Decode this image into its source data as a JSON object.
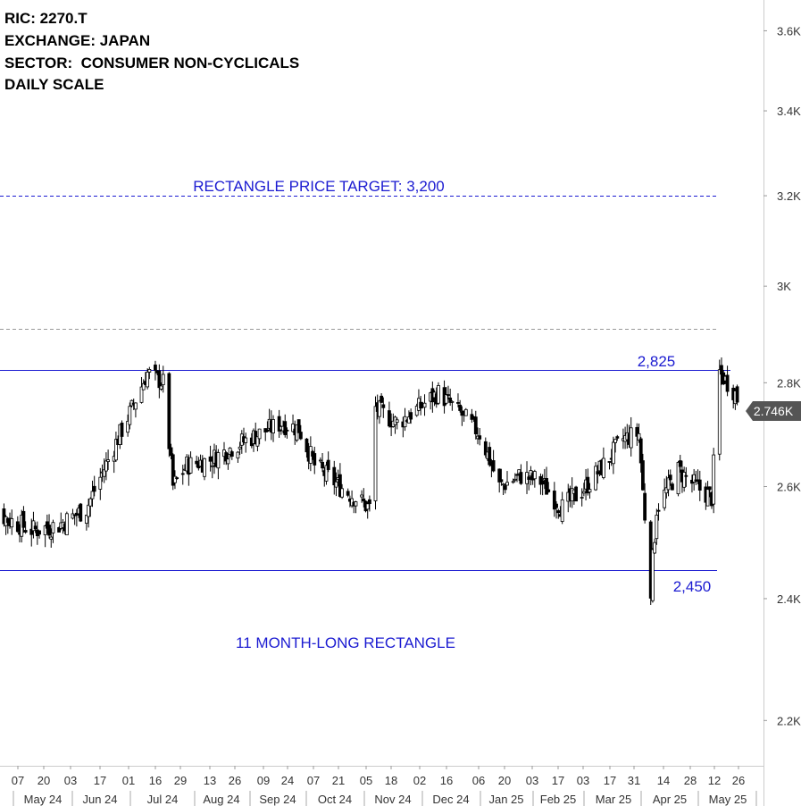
{
  "header": {
    "ric": "RIC: 2270.T",
    "exchange": "EXCHANGE: JAPAN",
    "sector": "SECTOR:  CONSUMER NON-CYCLICALS",
    "scale": "DAILY SCALE"
  },
  "annotations": {
    "target_label": "RECTANGLE PRICE TARGET: 3,200",
    "upper_label": "2,825",
    "lower_label": "2,450",
    "pattern_label": "11 MONTH-LONG RECTANGLE"
  },
  "last_price": "2.746K",
  "colors": {
    "annotation_blue": "#1b1bd1",
    "candle": "#000000",
    "price_tag": "#555555",
    "grid_dotted": "#999999"
  },
  "chart_data": {
    "type": "candlestick",
    "title": "",
    "y_axis": {
      "scale": "log",
      "ticks": [
        "2.2K",
        "2.4K",
        "2.6K",
        "2.8K",
        "3K",
        "3.2K",
        "3.4K",
        "3.6K"
      ],
      "tick_values": [
        2200,
        2400,
        2600,
        2800,
        3000,
        3200,
        3400,
        3600
      ],
      "range": [
        2130,
        3680
      ]
    },
    "x_axis": {
      "day_ticks": [
        "07",
        "20",
        "03",
        "17",
        "01",
        "16",
        "29",
        "13",
        "26",
        "09",
        "24",
        "07",
        "21",
        "05",
        "18",
        "02",
        "16",
        "06",
        "20",
        "03",
        "17",
        "03",
        "17",
        "31",
        "14",
        "28",
        "12",
        "26"
      ],
      "month_labels": [
        "May 24",
        "Jun 24",
        "Jul 24",
        "Aug 24",
        "Sep 24",
        "Oct 24",
        "Nov 24",
        "Dec 24",
        "Jan 25",
        "Feb 25",
        "Mar 25",
        "Apr 25",
        "May 25"
      ],
      "range": [
        "2024-05-01",
        "2025-05-28"
      ]
    },
    "levels": [
      {
        "name": "RECTANGLE PRICE TARGET: 3,200",
        "value": 3200,
        "style": "dashed-blue"
      },
      {
        "name": "2,825",
        "value": 2825,
        "style": "solid-blue"
      },
      {
        "name": "2,450",
        "value": 2450,
        "style": "solid-blue"
      },
      {
        "name": "",
        "value": 2910,
        "style": "dashed-gray"
      }
    ],
    "last_value": 2746,
    "close_trend": [
      [
        "2024-05-01",
        2575
      ],
      [
        "2024-05-15",
        2540
      ],
      [
        "2024-05-28",
        2520
      ],
      [
        "2024-06-10",
        2530
      ],
      [
        "2024-06-24",
        2560
      ],
      [
        "2024-07-05",
        2650
      ],
      [
        "2024-07-16",
        2740
      ],
      [
        "2024-07-25",
        2820
      ],
      [
        "2024-08-02",
        2800
      ],
      [
        "2024-08-07",
        2600
      ],
      [
        "2024-08-14",
        2640
      ],
      [
        "2024-08-26",
        2650
      ],
      [
        "2024-09-09",
        2680
      ],
      [
        "2024-09-20",
        2700
      ],
      [
        "2024-10-01",
        2720
      ],
      [
        "2024-10-10",
        2710
      ],
      [
        "2024-10-18",
        2640
      ],
      [
        "2024-10-31",
        2600
      ],
      [
        "2024-11-15",
        2560
      ],
      [
        "2024-11-18",
        2750
      ],
      [
        "2024-11-29",
        2720
      ],
      [
        "2024-12-10",
        2750
      ],
      [
        "2024-12-20",
        2780
      ],
      [
        "2024-12-31",
        2740
      ],
      [
        "2025-01-10",
        2700
      ],
      [
        "2025-01-20",
        2600
      ],
      [
        "2025-01-31",
        2620
      ],
      [
        "2025-02-10",
        2610
      ],
      [
        "2025-02-21",
        2560
      ],
      [
        "2025-03-05",
        2600
      ],
      [
        "2025-03-14",
        2640
      ],
      [
        "2025-03-24",
        2690
      ],
      [
        "2025-04-01",
        2700
      ],
      [
        "2025-04-03",
        2590
      ],
      [
        "2025-04-07",
        2420
      ],
      [
        "2025-04-10",
        2560
      ],
      [
        "2025-04-21",
        2630
      ],
      [
        "2025-04-30",
        2600
      ],
      [
        "2025-05-08",
        2580
      ],
      [
        "2025-05-12",
        2820
      ],
      [
        "2025-05-20",
        2780
      ],
      [
        "2025-05-23",
        2746
      ]
    ]
  }
}
